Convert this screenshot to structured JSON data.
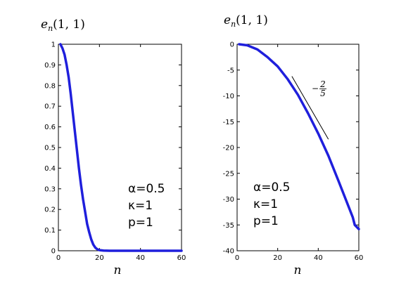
{
  "chart_data": [
    {
      "type": "line",
      "title_main": "e",
      "title_sub": "n",
      "title_rest": "(1, 1)",
      "xlabel": "n",
      "ylabel": "",
      "xlim": [
        0,
        60
      ],
      "ylim": [
        0,
        1
      ],
      "xticks": [
        0,
        20,
        40,
        60
      ],
      "yticks": [
        0,
        0.1,
        0.2,
        0.3,
        0.4,
        0.5,
        0.6,
        0.7,
        0.8,
        0.9,
        1
      ],
      "grid": false,
      "line_color": "#1f1fdc",
      "series": [
        {
          "x": [
            1,
            2,
            3,
            4,
            5,
            6,
            7,
            8,
            9,
            10,
            11,
            12,
            13,
            14,
            15,
            16,
            17,
            18,
            19,
            20,
            22,
            25,
            30,
            40,
            50,
            60
          ],
          "y": [
            1.0,
            0.98,
            0.95,
            0.9,
            0.84,
            0.76,
            0.67,
            0.58,
            0.49,
            0.4,
            0.32,
            0.25,
            0.19,
            0.13,
            0.09,
            0.055,
            0.03,
            0.015,
            0.007,
            0.003,
            0.001,
            0.0,
            0.0,
            0.0,
            0.0,
            0.0
          ]
        }
      ],
      "annotations": [
        "α=0.5",
        "κ=1",
        "p=1"
      ]
    },
    {
      "type": "line",
      "title_main": "e",
      "title_sub": "n",
      "title_rest": "(1, 1)",
      "xlabel": "n",
      "ylabel": "",
      "xlim": [
        0,
        60
      ],
      "ylim": [
        -40,
        0
      ],
      "xticks": [
        0,
        20,
        40,
        60
      ],
      "yticks": [
        0,
        -5,
        -10,
        -15,
        -20,
        -25,
        -30,
        -35,
        -40
      ],
      "grid": false,
      "line_color": "#1f1fdc",
      "series": [
        {
          "x": [
            1,
            5,
            10,
            15,
            20,
            25,
            30,
            35,
            40,
            45,
            50,
            55,
            57,
            58,
            60
          ],
          "y": [
            0.0,
            -0.2,
            -1.0,
            -2.5,
            -4.3,
            -6.8,
            -9.8,
            -13.4,
            -17.3,
            -21.6,
            -26.5,
            -31.5,
            -33.5,
            -35.0,
            -35.8
          ]
        }
      ],
      "slope_line": {
        "x": [
          27,
          45
        ],
        "y": [
          -6.2,
          -18.4
        ],
        "label": "−",
        "label_num": "2",
        "label_den": "5"
      },
      "annotations": [
        "α=0.5",
        "κ=1",
        "p=1"
      ]
    }
  ]
}
